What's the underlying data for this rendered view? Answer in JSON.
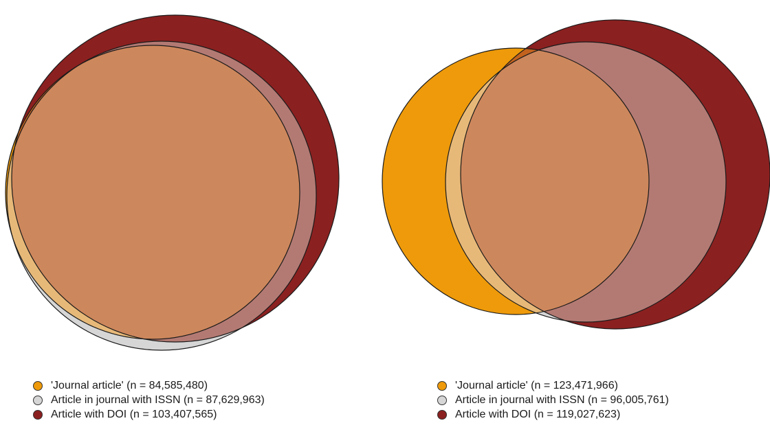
{
  "colors": {
    "journal_article": "#EE9A0A",
    "issn": "#D6D6D6",
    "doi": "#8B2020",
    "overlap_all": "#CD875C",
    "journal_doi_only": "#C2621D",
    "issn_doi_only": "#B37A73",
    "journal_issn_only": "#E7B979",
    "stroke": "#1a1a1a"
  },
  "chart_data": [
    {
      "type": "venn",
      "sets": [
        {
          "name": "'Journal article'",
          "n": 84585480,
          "color": "#EE9A0A"
        },
        {
          "name": "Article in journal with ISSN",
          "n": 87629963,
          "color": "#D6D6D6"
        },
        {
          "name": "Article with DOI",
          "n": 103407565,
          "color": "#8B2020"
        }
      ],
      "legend": [
        "'Journal article' (n = 84,585,480)",
        "Article in journal with ISSN (n = 87,629,963)",
        "Article with DOI (n = 103,407,565)"
      ]
    },
    {
      "type": "venn",
      "sets": [
        {
          "name": "'Journal article'",
          "n": 123471966,
          "color": "#EE9A0A"
        },
        {
          "name": "Article in journal with ISSN",
          "n": 96005761,
          "color": "#D6D6D6"
        },
        {
          "name": "Article with DOI",
          "n": 119027623,
          "color": "#8B2020"
        }
      ],
      "legend": [
        "'Journal article' (n = 123,471,966)",
        "Article in journal with ISSN (n = 96,005,761)",
        "Article with DOI (n = 119,027,623)"
      ]
    }
  ]
}
